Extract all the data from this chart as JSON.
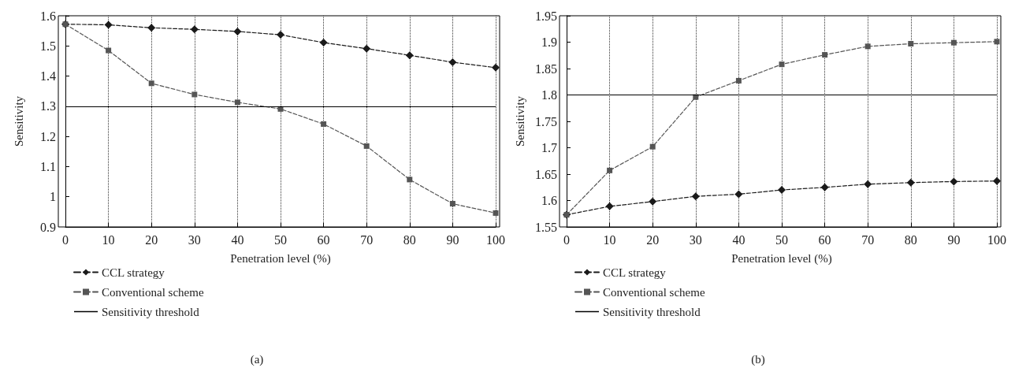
{
  "chart_data": [
    {
      "type": "line",
      "xlabel": "Penetration level (%)",
      "ylabel": "Sensitivity",
      "annotations": [
        "(a)"
      ],
      "x": [
        0,
        10,
        20,
        30,
        40,
        50,
        60,
        70,
        80,
        90,
        100
      ],
      "xlim": [
        0,
        100
      ],
      "xticks": [
        0,
        10,
        20,
        30,
        40,
        50,
        60,
        70,
        80,
        90,
        100
      ],
      "ylim": [
        0.9,
        1.6
      ],
      "yticks": [
        0.9,
        1,
        1.1,
        1.2,
        1.3,
        1.4,
        1.5,
        1.6
      ],
      "grid": "x",
      "legend": "bottom left",
      "series": [
        {
          "name": "CCL strategy",
          "color": "#1a1a1a",
          "marker": "diamond",
          "line_style": "dashed",
          "values": [
            1.572,
            1.57,
            1.56,
            1.555,
            1.548,
            1.537,
            1.511,
            1.491,
            1.469,
            1.446,
            1.428
          ]
        },
        {
          "name": "Conventional scheme",
          "color": "#555555",
          "marker": "square",
          "line_style": "dashed",
          "values": [
            1.572,
            1.485,
            1.376,
            1.339,
            1.313,
            1.291,
            1.241,
            1.168,
            1.057,
            0.977,
            0.946
          ]
        }
      ],
      "ref_lines": [
        {
          "axis": "y",
          "value": 1.3,
          "label": "Sensitivity threshold",
          "color": "#000000",
          "line_style": "solid"
        }
      ]
    },
    {
      "type": "line",
      "xlabel": "Penetration level (%)",
      "ylabel": "Sensitivity",
      "annotations": [
        "(b)"
      ],
      "x": [
        0,
        10,
        20,
        30,
        40,
        50,
        60,
        70,
        80,
        90,
        100
      ],
      "xlim": [
        0,
        100
      ],
      "xticks": [
        0,
        10,
        20,
        30,
        40,
        50,
        60,
        70,
        80,
        90,
        100
      ],
      "ylim": [
        1.55,
        1.95
      ],
      "yticks": [
        1.55,
        1.6,
        1.65,
        1.7,
        1.75,
        1.8,
        1.85,
        1.9,
        1.95
      ],
      "grid": "x",
      "legend": "bottom left",
      "series": [
        {
          "name": "CCL strategy",
          "color": "#1a1a1a",
          "marker": "diamond",
          "line_style": "dashed",
          "values": [
            1.573,
            1.589,
            1.598,
            1.608,
            1.612,
            1.62,
            1.625,
            1.631,
            1.634,
            1.636,
            1.637
          ]
        },
        {
          "name": "Conventional scheme",
          "color": "#555555",
          "marker": "square",
          "line_style": "dashed",
          "values": [
            1.573,
            1.657,
            1.702,
            1.796,
            1.827,
            1.858,
            1.876,
            1.892,
            1.897,
            1.899,
            1.901
          ]
        }
      ],
      "ref_lines": [
        {
          "axis": "y",
          "value": 1.8,
          "label": "Sensitivity threshold",
          "color": "#000000",
          "line_style": "solid"
        }
      ]
    }
  ]
}
